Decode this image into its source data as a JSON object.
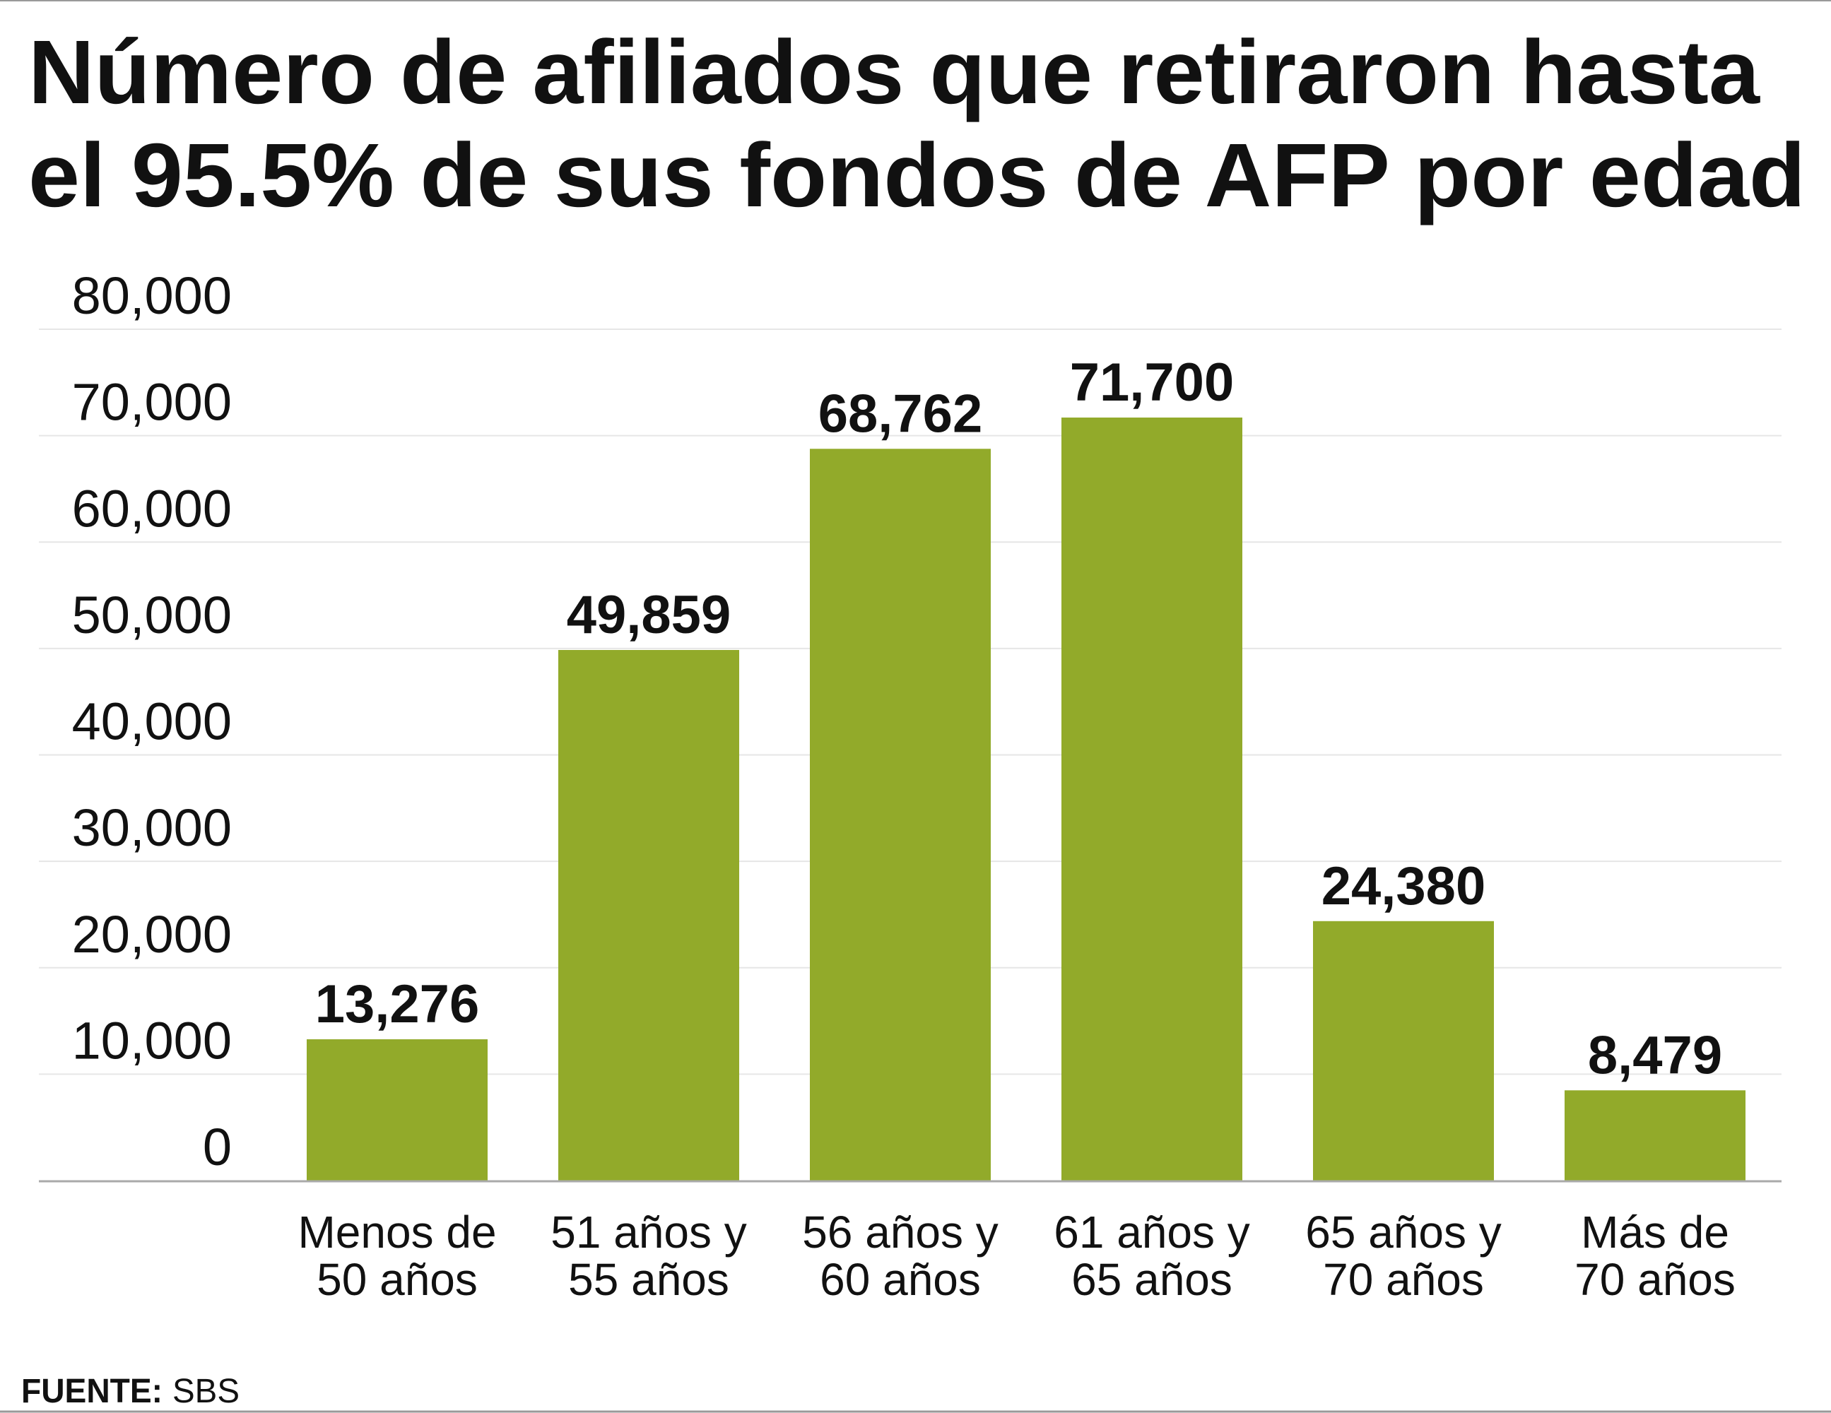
{
  "chart_data": {
    "type": "bar",
    "title_lines": [
      "Número de afiliados que retiraron hasta",
      "el 95.5% de sus fondos de AFP por edad"
    ],
    "categories": [
      [
        "Menos de",
        "50 años"
      ],
      [
        "51 años y",
        "55 años"
      ],
      [
        "56 años y",
        "60 años"
      ],
      [
        "61 años y",
        "65 años"
      ],
      [
        "65 años y",
        "70 años"
      ],
      [
        "Más de",
        "70 años"
      ]
    ],
    "values": [
      13276,
      49859,
      68762,
      71700,
      24380,
      8479
    ],
    "value_labels": [
      "13,276",
      "49,859",
      "68,762",
      "71,700",
      "24,380",
      "8,479"
    ],
    "yticks": [
      0,
      10000,
      20000,
      30000,
      40000,
      50000,
      60000,
      70000,
      80000
    ],
    "ytick_labels": [
      "0",
      "10,000",
      "20,000",
      "30,000",
      "40,000",
      "50,000",
      "60,000",
      "70,000",
      "80,000"
    ],
    "ylim": [
      0,
      80000
    ],
    "grid": true,
    "xlabel": "",
    "ylabel": "",
    "bar_color": "#92aa2a"
  },
  "source": {
    "label": "FUENTE:",
    "value": "SBS"
  }
}
